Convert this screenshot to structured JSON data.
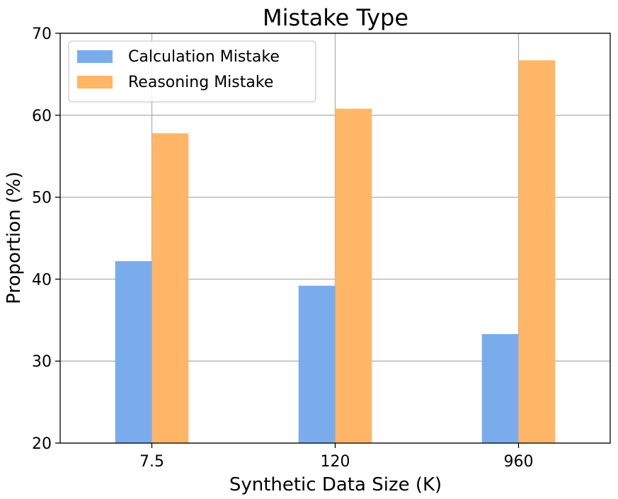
{
  "chart_data": {
    "type": "bar",
    "title": "Mistake Type",
    "xlabel": "Synthetic Data Size (K)",
    "ylabel": "Proportion (%)",
    "categories": [
      "7.5",
      "120",
      "960"
    ],
    "series": [
      {
        "name": "Calculation Mistake",
        "values": [
          42.2,
          39.2,
          33.3
        ],
        "color": "#7aacec"
      },
      {
        "name": "Reasoning Mistake",
        "values": [
          57.8,
          60.8,
          66.7
        ],
        "color": "#ffb666"
      }
    ],
    "ylim": [
      20,
      70
    ],
    "yticks": [
      20,
      30,
      40,
      50,
      60,
      70
    ],
    "grid": true,
    "legend": "top-left"
  }
}
